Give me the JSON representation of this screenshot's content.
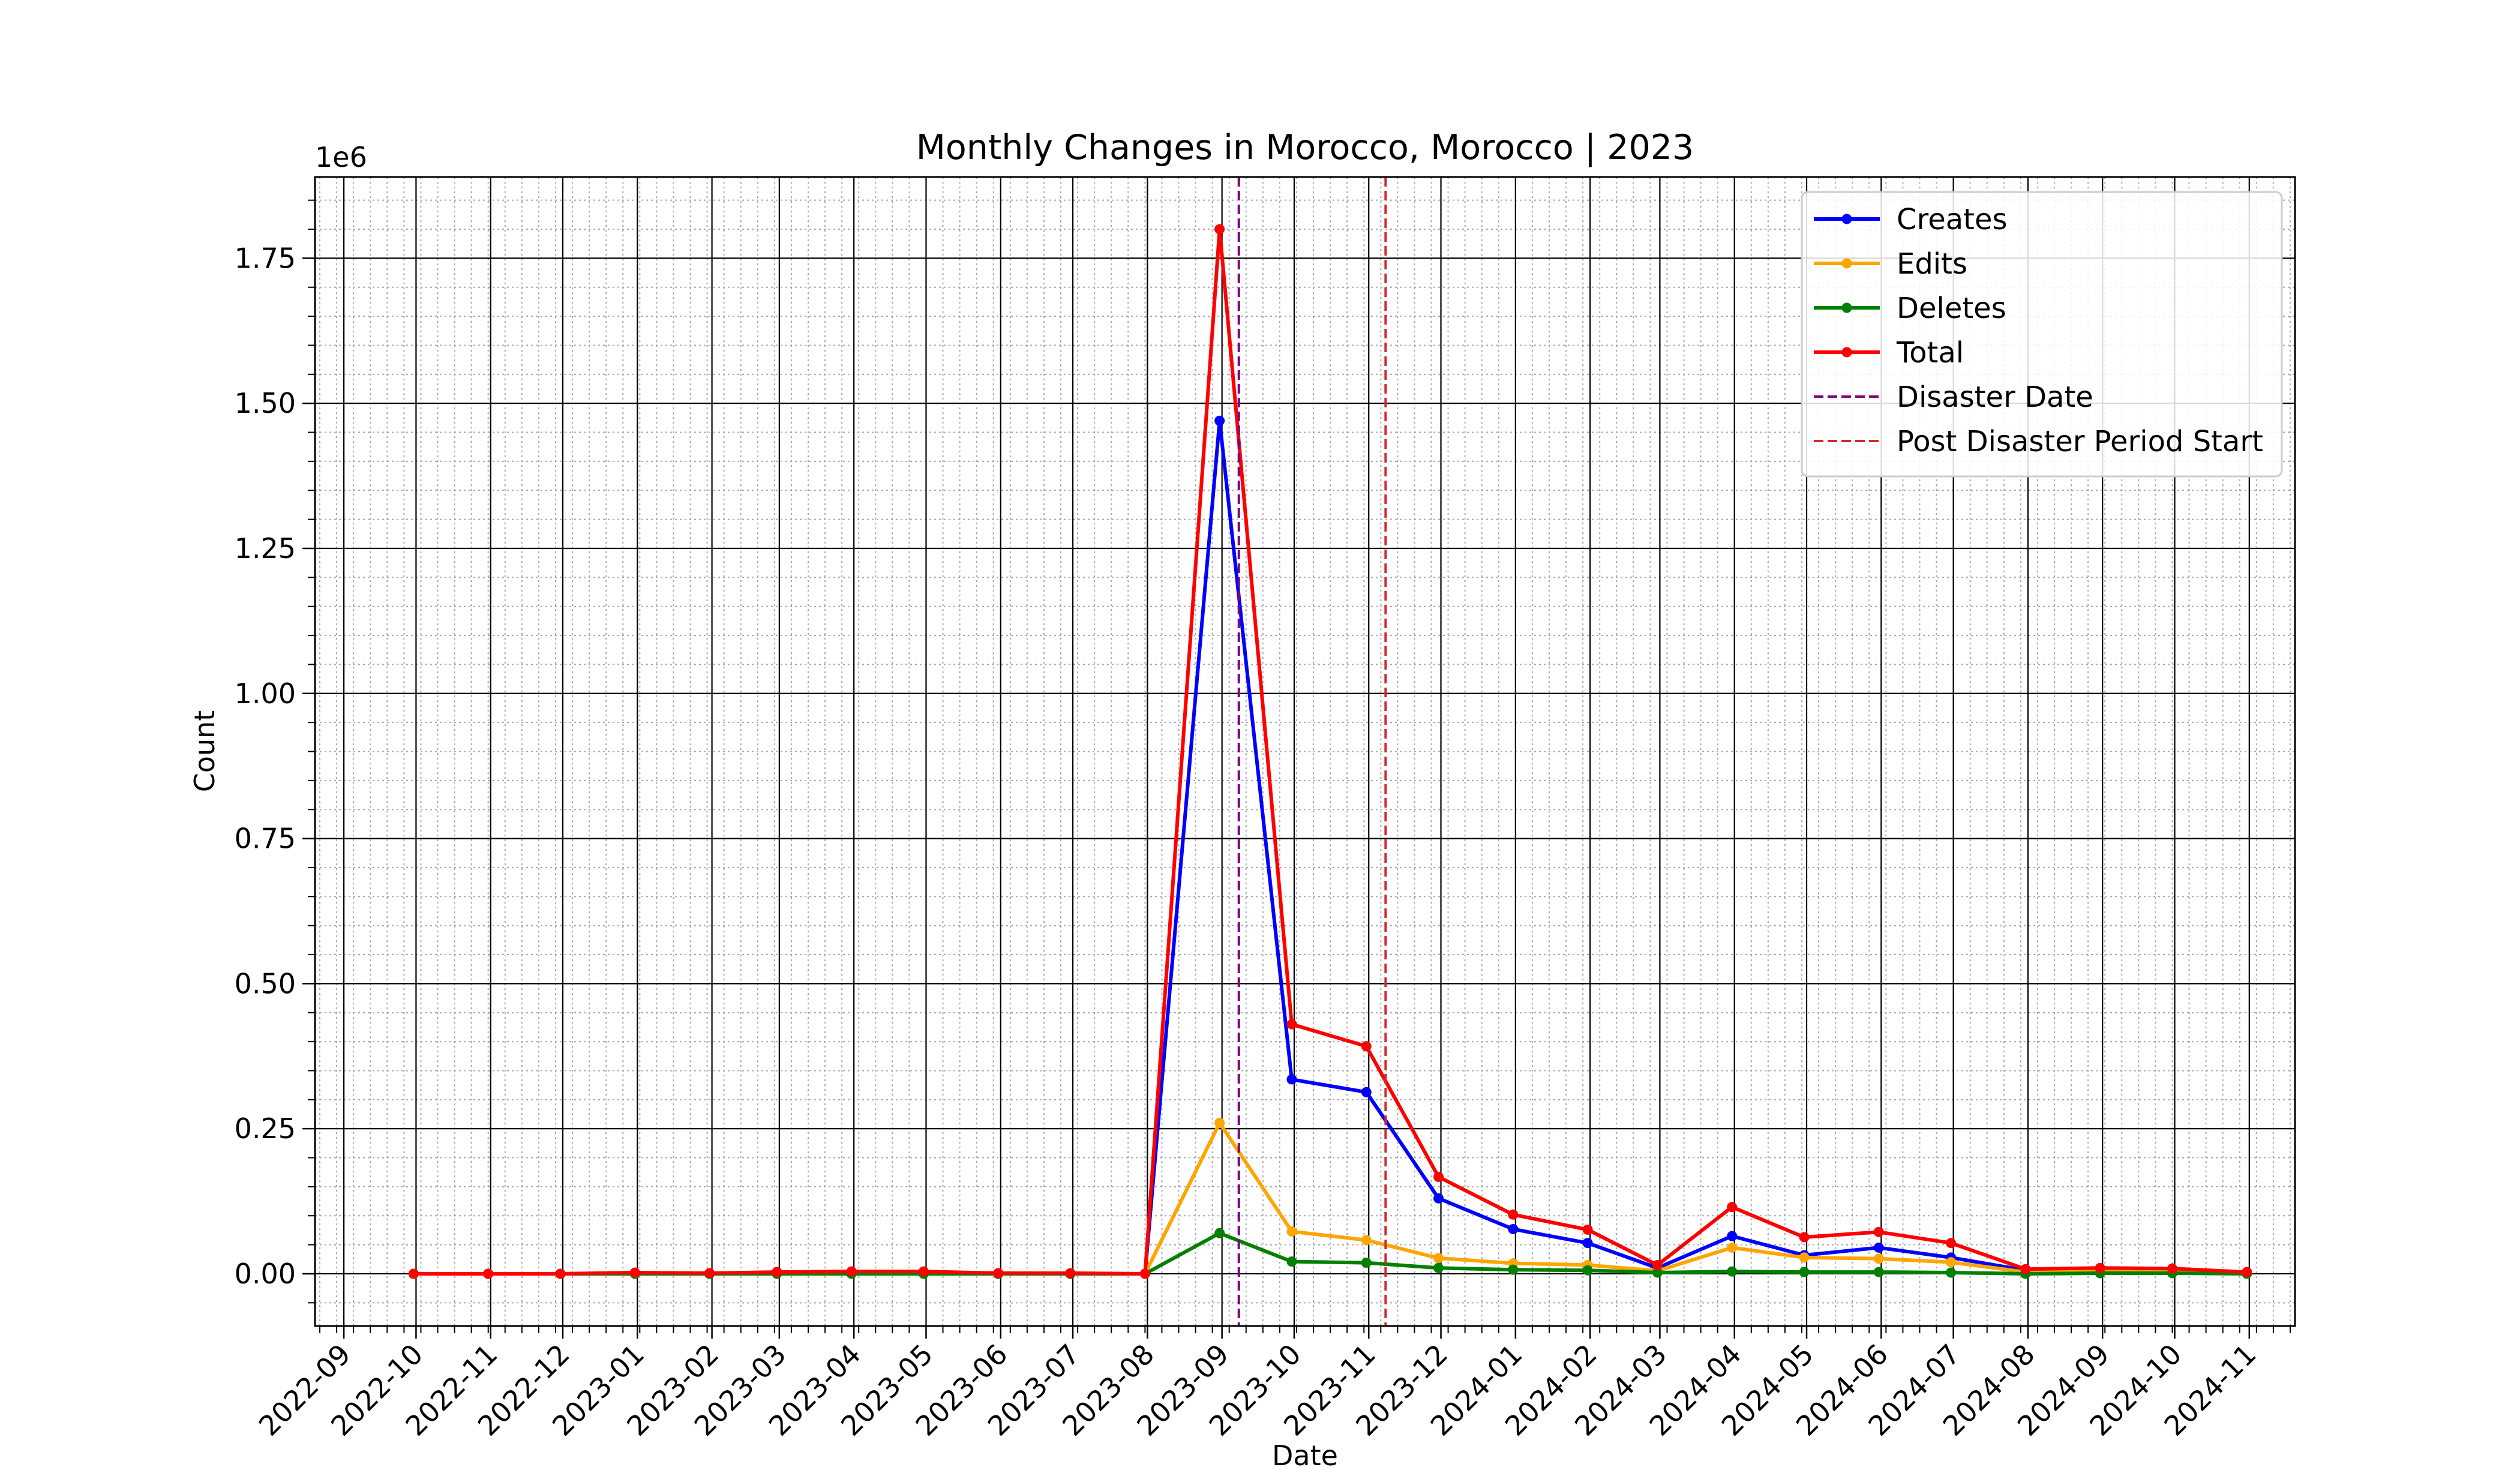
{
  "chart_data": {
    "type": "line",
    "title": "Monthly Changes in Morocco, Morocco | 2023",
    "xlabel": "Date",
    "ylabel": "Count",
    "y_offset_label": "1e6",
    "y_unit_scale": 1000000,
    "xlim": [
      "2022-08-20",
      "2024-11-20"
    ],
    "ylim": [
      -0.09,
      1.89
    ],
    "x_tick_labels": [
      "2022-09",
      "2022-10",
      "2022-11",
      "2022-12",
      "2023-01",
      "2023-02",
      "2023-03",
      "2023-04",
      "2023-05",
      "2023-06",
      "2023-07",
      "2023-08",
      "2023-09",
      "2023-10",
      "2023-11",
      "2023-12",
      "2024-01",
      "2024-02",
      "2024-03",
      "2024-04",
      "2024-05",
      "2024-06",
      "2024-07",
      "2024-08",
      "2024-09",
      "2024-10",
      "2024-11"
    ],
    "y_ticks": [
      0.0,
      0.25,
      0.5,
      0.75,
      1.0,
      1.25,
      1.5,
      1.75
    ],
    "y_tick_labels": [
      "0.00",
      "0.25",
      "0.50",
      "0.75",
      "1.00",
      "1.25",
      "1.50",
      "1.75"
    ],
    "grid": true,
    "minor_grid": true,
    "legend_position": "top-right",
    "x": [
      "2022-09-30",
      "2022-10-31",
      "2022-11-30",
      "2022-12-31",
      "2023-01-31",
      "2023-02-28",
      "2023-03-31",
      "2023-04-30",
      "2023-05-31",
      "2023-06-30",
      "2023-07-31",
      "2023-08-31",
      "2023-09-30",
      "2023-10-31",
      "2023-11-30",
      "2023-12-31",
      "2024-01-31",
      "2024-02-29",
      "2024-03-31",
      "2024-04-30",
      "2024-05-31",
      "2024-06-30",
      "2024-07-31",
      "2024-08-31",
      "2024-09-30",
      "2024-10-31"
    ],
    "series": [
      {
        "name": "Creates",
        "color": "#0000ff",
        "values": [
          0.0,
          0.0,
          0.0,
          0.001,
          0.0,
          0.001,
          0.001,
          0.001,
          0.0,
          0.0,
          0.0,
          1.47,
          0.335,
          0.313,
          0.13,
          0.077,
          0.053,
          0.01,
          0.065,
          0.032,
          0.045,
          0.028,
          0.006,
          0.006,
          0.005,
          0.002
        ]
      },
      {
        "name": "Edits",
        "color": "#ffa500",
        "values": [
          0.0,
          0.0,
          0.0,
          0.001,
          0.001,
          0.002,
          0.003,
          0.003,
          0.001,
          0.001,
          0.0,
          0.26,
          0.073,
          0.058,
          0.027,
          0.018,
          0.015,
          0.005,
          0.045,
          0.028,
          0.026,
          0.02,
          0.003,
          0.004,
          0.003,
          0.001
        ]
      },
      {
        "name": "Deletes",
        "color": "#008000",
        "values": [
          0.0,
          0.0,
          0.0,
          0.0,
          0.0,
          0.0,
          0.0,
          0.0,
          0.0,
          0.0,
          0.0,
          0.07,
          0.021,
          0.019,
          0.01,
          0.007,
          0.006,
          0.002,
          0.004,
          0.003,
          0.003,
          0.002,
          0.0,
          0.001,
          0.001,
          0.0
        ]
      },
      {
        "name": "Total",
        "color": "#ff0000",
        "values": [
          0.0,
          0.0,
          0.0,
          0.002,
          0.001,
          0.003,
          0.004,
          0.004,
          0.001,
          0.001,
          0.0,
          1.8,
          0.43,
          0.392,
          0.167,
          0.102,
          0.076,
          0.015,
          0.115,
          0.063,
          0.072,
          0.053,
          0.008,
          0.01,
          0.009,
          0.003
        ]
      }
    ],
    "vlines": [
      {
        "name": "Disaster Date",
        "x": "2023-09-08",
        "color": "#800080",
        "style": "dashed"
      },
      {
        "name": "Post Disaster Period Start",
        "x": "2023-11-08",
        "color": "#d62728",
        "style": "dashed"
      }
    ]
  }
}
